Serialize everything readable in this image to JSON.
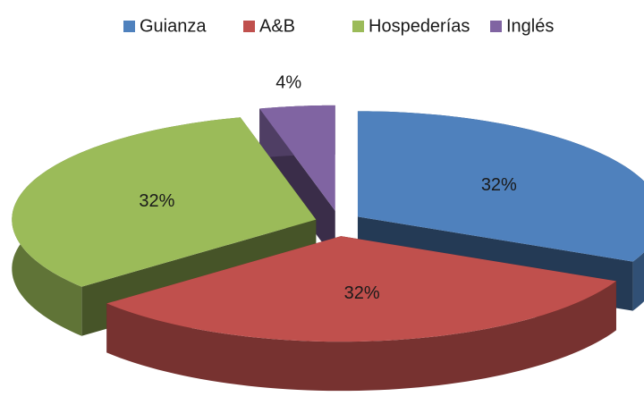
{
  "chart_data": {
    "type": "pie",
    "categories": [
      "Guianza",
      "A&B",
      "Hospederías",
      "Inglés"
    ],
    "values": [
      32,
      32,
      32,
      4
    ],
    "value_labels": [
      "32%",
      "32%",
      "32%",
      "4%"
    ],
    "colors": [
      "#4f81bd",
      "#c0504d",
      "#9bbb59",
      "#8064a2"
    ],
    "legend": "top",
    "three_d": true,
    "exploded": true
  }
}
